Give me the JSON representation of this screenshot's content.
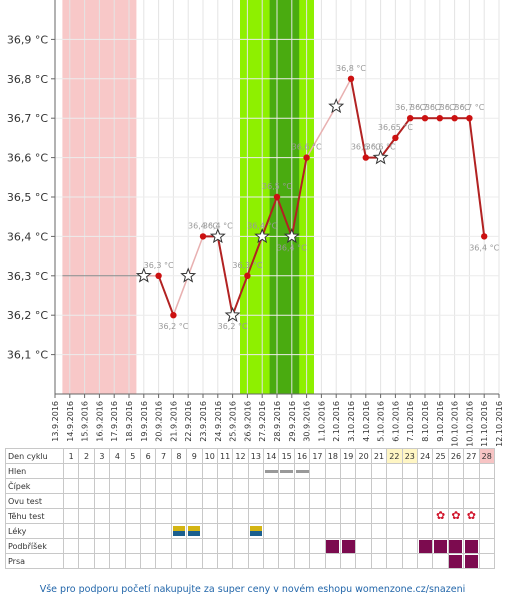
{
  "chart_data": {
    "type": "line",
    "title": "",
    "ylabel": "",
    "xlabel": "",
    "ylim": [
      36.0,
      37.0
    ],
    "yticks": [
      "36,1 °C",
      "36,2 °C",
      "36,3 °C",
      "36,4 °C",
      "36,5 °C",
      "36,6 °C",
      "36,7 °C",
      "36,8 °C",
      "36,9 °C"
    ],
    "dates": [
      "13.9.2016",
      "14.9.2016",
      "15.9.2016",
      "16.9.2016",
      "17.9.2016",
      "18.9.2016",
      "19.9.2016",
      "20.9.2016",
      "21.9.2016",
      "22.9.2016",
      "23.9.2016",
      "24.9.2016",
      "25.9.2016",
      "26.9.2016",
      "27.9.2016",
      "28.9.2016",
      "29.9.2016",
      "30.9.2016",
      "1.10.2016",
      "2.10.2016",
      "3.10.2016",
      "4.10.2016",
      "5.10.2016",
      "6.10.2016",
      "7.10.2016",
      "8.10.2016",
      "9.10.2016",
      "10.10.2016",
      "10.10.2016",
      "11.10.2016",
      "12.10.2016"
    ],
    "period_shading_dates": [
      "14.9.2016",
      "18.9.2016"
    ],
    "fertile_shading_dates": [
      "26.9.2016",
      "30.9.2016"
    ],
    "fertile_peak_dates": [
      "28.9.2016",
      "29.9.2016"
    ],
    "colors": {
      "period": "#f8c8c8",
      "fertile": "#8ef000",
      "fertile_peak": "#4aab10",
      "line": "#b22222",
      "faded_line": "#e8b0b0",
      "baseline": "#888888",
      "point": "#cc1111"
    },
    "baseline_start_index": 1,
    "baseline_end_index": 6,
    "points": [
      {
        "i": 6,
        "y": 36.3,
        "marker": "star",
        "label": ""
      },
      {
        "i": 7,
        "y": 36.3,
        "marker": "dot",
        "label": "36,3 °C"
      },
      {
        "i": 8,
        "y": 36.2,
        "marker": "dot",
        "label": "36,2 °C"
      },
      {
        "i": 9,
        "y": 36.3,
        "marker": "star",
        "label": ""
      },
      {
        "i": 10,
        "y": 36.4,
        "marker": "dot",
        "label": "36,4 °C"
      },
      {
        "i": 11,
        "y": 36.4,
        "marker": "star",
        "label": "36,4 °C"
      },
      {
        "i": 12,
        "y": 36.2,
        "marker": "star",
        "label": "36,2 °C"
      },
      {
        "i": 13,
        "y": 36.3,
        "marker": "dot",
        "label": "36,3 °C"
      },
      {
        "i": 14,
        "y": 36.4,
        "marker": "star",
        "label": "36,4 °C"
      },
      {
        "i": 15,
        "y": 36.5,
        "marker": "dot",
        "label": "36,5 °C"
      },
      {
        "i": 16,
        "y": 36.4,
        "marker": "star",
        "label": "36,4 °C"
      },
      {
        "i": 17,
        "y": 36.6,
        "marker": "dot",
        "label": "36,6 °C"
      },
      {
        "i": 19,
        "y": 36.73,
        "marker": "star",
        "label": ""
      },
      {
        "i": 20,
        "y": 36.8,
        "marker": "dot",
        "label": "36,8 °C"
      },
      {
        "i": 21,
        "y": 36.6,
        "marker": "dot",
        "label": "36,6 °C"
      },
      {
        "i": 22,
        "y": 36.6,
        "marker": "star",
        "label": "36,6 °C"
      },
      {
        "i": 23,
        "y": 36.65,
        "marker": "dot",
        "label": "36,65 °C"
      },
      {
        "i": 24,
        "y": 36.7,
        "marker": "dot",
        "label": "36,7 °C"
      },
      {
        "i": 25,
        "y": 36.7,
        "marker": "dot",
        "label": "36,7 °C"
      },
      {
        "i": 26,
        "y": 36.7,
        "marker": "dot",
        "label": "36,7 °C"
      },
      {
        "i": 27,
        "y": 36.7,
        "marker": "dot",
        "label": "36,7 °C"
      },
      {
        "i": 28,
        "y": 36.7,
        "marker": "dot",
        "label": "36,7 °C"
      },
      {
        "i": 29,
        "y": 36.4,
        "marker": "dot",
        "label": "36,4 °C"
      }
    ],
    "faded_segments": [
      [
        6,
        7
      ],
      [
        8,
        9
      ],
      [
        9,
        10
      ],
      [
        17,
        19
      ],
      [
        19,
        20
      ]
    ]
  },
  "cycle_table": {
    "rows": [
      {
        "key": "den",
        "label": "Den cyklu"
      },
      {
        "key": "hlen",
        "label": "Hlen"
      },
      {
        "key": "cipek",
        "label": "Čípek"
      },
      {
        "key": "ovu",
        "label": "Ovu test"
      },
      {
        "key": "tehu",
        "label": "Těhu test"
      },
      {
        "key": "leky",
        "label": "Léky"
      },
      {
        "key": "podbrisek",
        "label": "Podbříšek"
      },
      {
        "key": "prsa",
        "label": "Prsa"
      }
    ],
    "days": [
      "1",
      "2",
      "3",
      "4",
      "5",
      "6",
      "7",
      "8",
      "9",
      "10",
      "11",
      "12",
      "13",
      "14",
      "15",
      "16",
      "17",
      "18",
      "19",
      "20",
      "21",
      "22",
      "23",
      "24",
      "25",
      "26",
      "27",
      "28"
    ],
    "yellow_days": [
      22,
      23
    ],
    "pink_days": [
      28
    ],
    "hlen_days": [
      14,
      15,
      16
    ],
    "tehu_days": [
      25,
      26,
      27
    ],
    "tehu_symbol": "✿",
    "leky_days": [
      8,
      9,
      13
    ],
    "podbrisek_days": [
      18,
      19,
      24,
      25,
      26,
      27
    ],
    "prsa_days": [
      26,
      27
    ]
  },
  "footer": {
    "text": "Vše pro podporu početí nakupujte za super ceny v novém eshopu womenzone.cz/snazeni"
  }
}
